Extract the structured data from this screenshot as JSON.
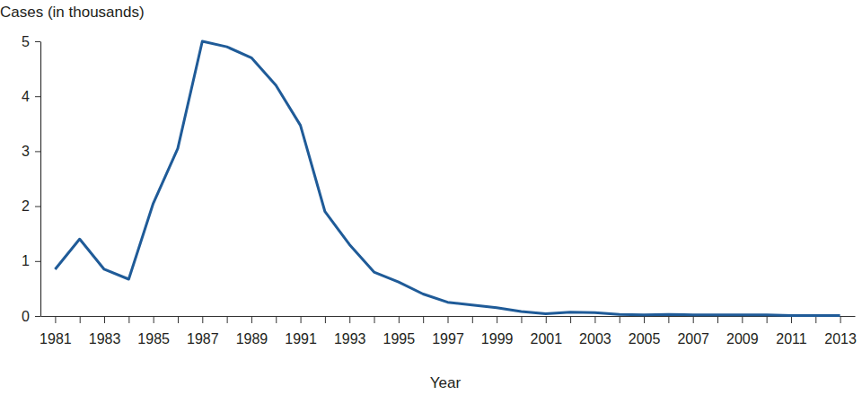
{
  "chart_data": {
    "type": "line",
    "y_label": "Cases (in thousands)",
    "x_label": "Year",
    "categories": [
      "1981",
      null,
      "1983",
      null,
      "1985",
      null,
      "1987",
      null,
      "1989",
      null,
      "1991",
      null,
      "1993",
      null,
      "1995",
      null,
      "1997",
      null,
      "1999",
      null,
      "2001",
      null,
      "2003",
      null,
      "2005",
      null,
      "2007",
      null,
      "2009",
      null,
      "2011",
      null,
      "2013"
    ],
    "values": [
      0.85,
      1.4,
      0.85,
      0.67,
      2.05,
      3.05,
      5.0,
      4.9,
      4.7,
      4.2,
      3.47,
      1.9,
      1.3,
      0.8,
      0.62,
      0.4,
      0.25,
      0.2,
      0.15,
      0.08,
      0.04,
      0.07,
      0.06,
      0.03,
      0.02,
      0.03,
      0.02,
      0.02,
      0.02,
      0.02,
      0.01,
      0.01,
      0.01
    ],
    "color": "#1f5b98",
    "ylim": [
      0,
      5
    ],
    "yticks": [
      0,
      1,
      2,
      3,
      4,
      5
    ],
    "grid": false
  }
}
